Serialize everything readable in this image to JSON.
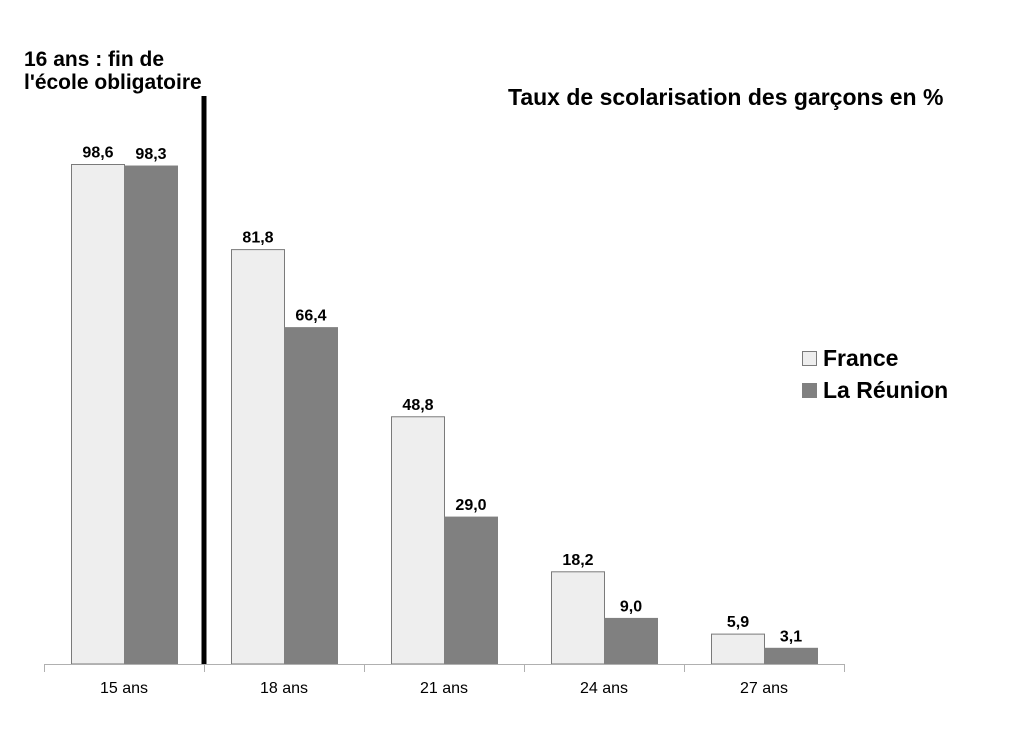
{
  "chart_data": {
    "type": "bar",
    "title": "Taux de scolarisation des garçons en %",
    "annotation": [
      "16 ans : fin de",
      "l'école obligatoire"
    ],
    "categories": [
      "15 ans",
      "18 ans",
      "21 ans",
      "24 ans",
      "27 ans"
    ],
    "series": [
      {
        "name": "France",
        "values": [
          98.6,
          81.8,
          48.8,
          18.2,
          5.9
        ],
        "labels": [
          "98,6",
          "81,8",
          "48,8",
          "18,2",
          "5,9"
        ],
        "color": "#eeeeee",
        "stroke": "#7a7a7a"
      },
      {
        "name": "La Réunion",
        "values": [
          98.3,
          66.4,
          29.0,
          9.0,
          3.1
        ],
        "labels": [
          "98,3",
          "66,4",
          "29,0",
          "9,0",
          "3,1"
        ],
        "color": "#808080",
        "stroke": "#808080"
      }
    ],
    "ylim": [
      0,
      100
    ],
    "grid": false,
    "legend_position": "right",
    "reference_line_between": [
      "15 ans",
      "18 ans"
    ]
  }
}
